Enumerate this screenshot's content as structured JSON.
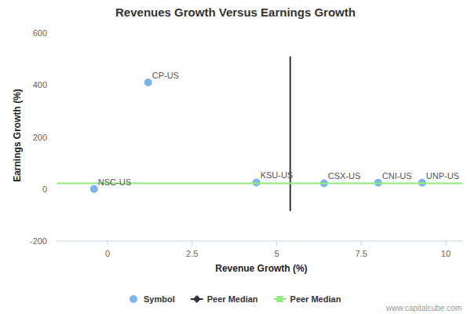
{
  "chart_data": {
    "type": "scatter",
    "title": "Revenues Growth Versus Earnings Growth",
    "x_label": "Revenue Growth (%)",
    "y_label": "Earnings Growth (%)",
    "xlim": [
      -1.5,
      10.5
    ],
    "xticks": [
      0,
      2.5,
      5,
      7.5,
      10
    ],
    "ylim": [
      -200,
      600
    ],
    "yticks": [
      -200,
      0,
      200,
      400,
      600
    ],
    "grid": false,
    "legend": "bottom",
    "annotations": [
      "www.capitalcube.com"
    ],
    "series": [
      {
        "name": "Symbol",
        "type": "scatter",
        "marker": "circle",
        "color": "#7cb5ec",
        "x": [
          -0.4,
          1.2,
          4.4,
          6.4,
          8.0,
          9.3
        ],
        "values": [
          0,
          410,
          25,
          22,
          24,
          24
        ],
        "labels": [
          "NSC-US",
          "CP-US",
          "KSU-US",
          "CSX-US",
          "CNI-US",
          "UNP-US"
        ]
      },
      {
        "name": "Peer Median",
        "type": "line",
        "marker": "diamond",
        "color": "#333333",
        "x": [
          5.4,
          5.4
        ],
        "values": [
          -85,
          510
        ]
      },
      {
        "name": "Peer Median",
        "type": "line",
        "marker": "square",
        "color": "#90ed7d",
        "x": [
          -1.5,
          10.5
        ],
        "values": [
          22,
          22
        ]
      }
    ]
  }
}
